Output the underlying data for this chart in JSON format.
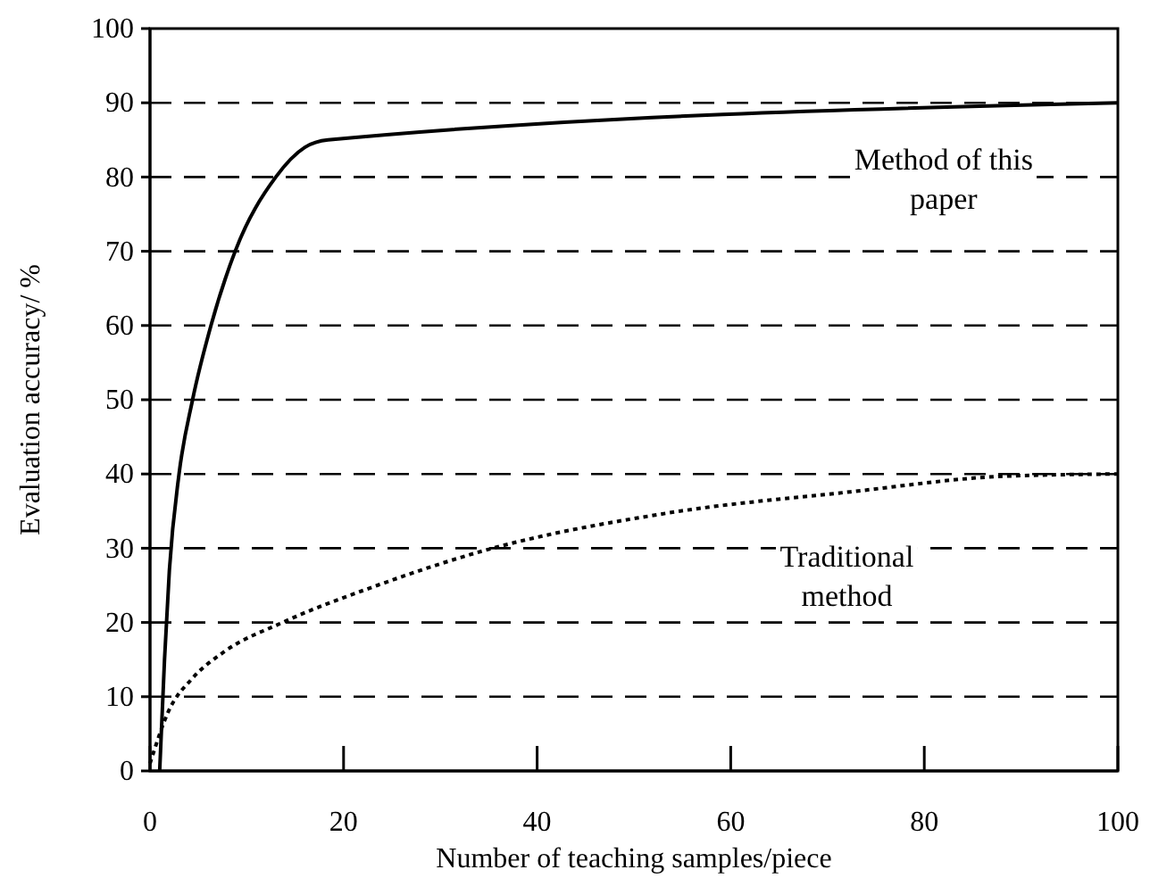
{
  "chart_data": {
    "type": "line",
    "xlabel": "Number of teaching samples/piece",
    "ylabel": "Evaluation accuracy/ %",
    "xlim": [
      0,
      100
    ],
    "xticks": [
      0,
      20,
      40,
      60,
      80,
      100
    ],
    "ylim": [
      0,
      100
    ],
    "yticks": [
      0,
      10,
      20,
      30,
      40,
      50,
      60,
      70,
      80,
      90,
      100
    ],
    "grid": "y",
    "series": [
      {
        "color": "#000000",
        "line_style": "solid",
        "x": [
          1,
          1.5,
          2,
          3,
          4.4,
          6.3,
          8.8,
          13,
          16,
          18.4,
          100
        ],
        "values": [
          0,
          15,
          27,
          40,
          50,
          60,
          70,
          80,
          84,
          85,
          90
        ]
      },
      {
        "color": "#000000",
        "line_style": "dotted",
        "x": [
          0,
          1.9,
          4.4,
          7.6,
          13.7,
          23.5,
          34.3,
          53.3,
          72.4,
          88.3,
          100
        ],
        "values": [
          1,
          8,
          12.5,
          16,
          20,
          25,
          29.6,
          34.7,
          37.6,
          39.7,
          40
        ]
      }
    ],
    "annotations": [
      "Method of this paper",
      "Traditional method"
    ]
  }
}
